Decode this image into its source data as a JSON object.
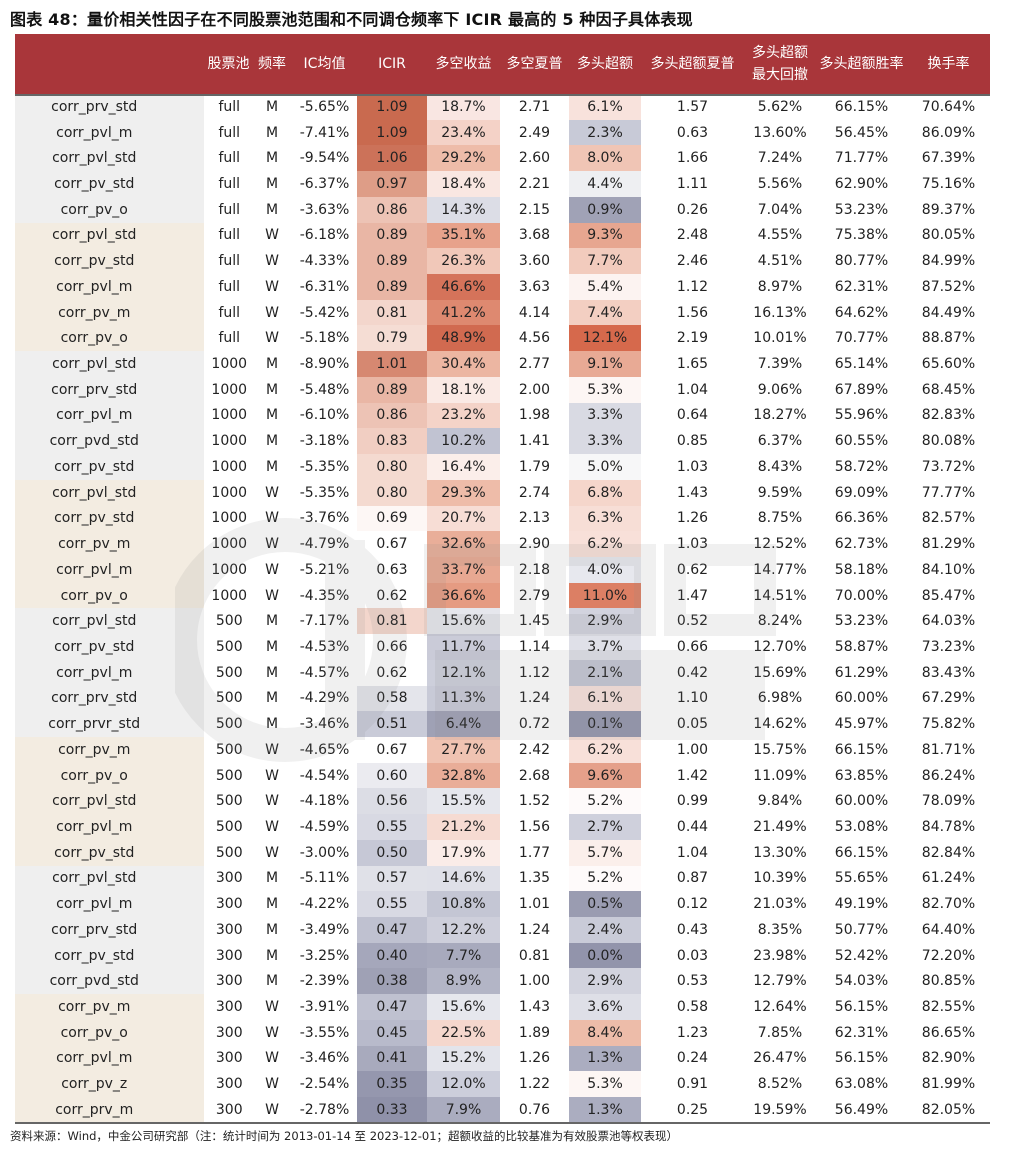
{
  "title": "图表 48：量价相关性因子在不同股票池范围和不同调仓频率下 ICIR 最高的 5 种因子具体表现",
  "headers": [
    "",
    "股票池",
    "频率",
    "IC均值",
    "ICIR",
    "多空收益",
    "多空夏普",
    "多头超额",
    "多头超额夏普",
    "多头超额\n最大回撤",
    "多头超额胜率",
    "换手率"
  ],
  "groupColors": {
    "gray": "#efefef",
    "beige": "#f3ece1"
  },
  "rows": [
    {
      "g": "gray",
      "f": "corr_prv_std",
      "p": "full",
      "q": "M",
      "ic": "-5.65%",
      "icir": "1.09",
      "ls": "18.7%",
      "lss": "2.71",
      "ex": "6.1%",
      "exs": "1.57",
      "dd": "5.62%",
      "wr": "66.15%",
      "to": "70.64%",
      "c_icir": "#c96a4f",
      "c_ls": "#f9e6e2",
      "c_ex": "#f8e2dc"
    },
    {
      "g": "gray",
      "f": "corr_pvl_m",
      "p": "full",
      "q": "M",
      "ic": "-7.41%",
      "icir": "1.09",
      "ls": "23.4%",
      "lss": "2.49",
      "ex": "2.3%",
      "exs": "0.63",
      "dd": "13.60%",
      "wr": "56.45%",
      "to": "86.09%",
      "c_icir": "#c96a4f",
      "c_ls": "#f4d2c7",
      "c_ex": "#c8cad7"
    },
    {
      "g": "gray",
      "f": "corr_pvl_std",
      "p": "full",
      "q": "M",
      "ic": "-9.54%",
      "icir": "1.06",
      "ls": "29.2%",
      "lss": "2.60",
      "ex": "8.0%",
      "exs": "1.66",
      "dd": "7.24%",
      "wr": "71.77%",
      "to": "67.39%",
      "c_icir": "#cc7259",
      "c_ls": "#eebca9",
      "c_ex": "#f0c5b5"
    },
    {
      "g": "gray",
      "f": "corr_pv_std",
      "p": "full",
      "q": "M",
      "ic": "-6.37%",
      "icir": "0.97",
      "ls": "18.4%",
      "lss": "2.21",
      "ex": "4.4%",
      "exs": "1.11",
      "dd": "5.56%",
      "wr": "62.90%",
      "to": "75.16%",
      "c_icir": "#de9d87",
      "c_ls": "#f9e7e2",
      "c_ex": "#eeeff2"
    },
    {
      "g": "gray",
      "f": "corr_pv_o",
      "p": "full",
      "q": "M",
      "ic": "-3.63%",
      "icir": "0.86",
      "ls": "14.3%",
      "lss": "2.15",
      "ex": "0.9%",
      "exs": "0.26",
      "dd": "7.04%",
      "wr": "53.23%",
      "to": "89.37%",
      "c_icir": "#edc3b5",
      "c_ls": "#dcdde6",
      "c_ex": "#a0a2b6"
    },
    {
      "g": "beige",
      "f": "corr_pvl_std",
      "p": "full",
      "q": "W",
      "ic": "-6.18%",
      "icir": "0.89",
      "ls": "35.1%",
      "lss": "3.68",
      "ex": "9.3%",
      "exs": "2.48",
      "dd": "4.55%",
      "wr": "75.38%",
      "to": "80.05%",
      "c_icir": "#e9b6a5",
      "c_ls": "#e7a28b",
      "c_ex": "#e7a690"
    },
    {
      "g": "beige",
      "f": "corr_pv_std",
      "p": "full",
      "q": "W",
      "ic": "-4.33%",
      "icir": "0.89",
      "ls": "26.3%",
      "lss": "3.60",
      "ex": "7.7%",
      "exs": "2.46",
      "dd": "4.51%",
      "wr": "80.77%",
      "to": "84.99%",
      "c_icir": "#e9b6a5",
      "c_ls": "#f1c8b9",
      "c_ex": "#f2cbbd"
    },
    {
      "g": "beige",
      "f": "corr_pvl_m",
      "p": "full",
      "q": "W",
      "ic": "-6.31%",
      "icir": "0.89",
      "ls": "46.6%",
      "lss": "3.63",
      "ex": "5.4%",
      "exs": "1.12",
      "dd": "8.97%",
      "wr": "62.31%",
      "to": "87.52%",
      "c_icir": "#e9b6a5",
      "c_ls": "#d5735a",
      "c_ex": "#fcf3f1"
    },
    {
      "g": "beige",
      "f": "corr_pv_m",
      "p": "full",
      "q": "W",
      "ic": "-5.42%",
      "icir": "0.81",
      "ls": "41.2%",
      "lss": "4.14",
      "ex": "7.4%",
      "exs": "1.56",
      "dd": "16.13%",
      "wr": "64.62%",
      "to": "84.49%",
      "c_icir": "#f3d6cc",
      "c_ls": "#de8970",
      "c_ex": "#f3cfc2"
    },
    {
      "g": "beige",
      "f": "corr_pv_o",
      "p": "full",
      "q": "W",
      "ic": "-5.18%",
      "icir": "0.79",
      "ls": "48.9%",
      "lss": "4.56",
      "ex": "12.1%",
      "exs": "2.19",
      "dd": "10.01%",
      "wr": "70.77%",
      "to": "88.87%",
      "c_icir": "#f5ddd4",
      "c_ls": "#d16a50",
      "c_ex": "#d6694c"
    },
    {
      "g": "gray",
      "f": "corr_pvl_std",
      "p": "1000",
      "q": "M",
      "ic": "-8.90%",
      "icir": "1.01",
      "ls": "30.4%",
      "lss": "2.77",
      "ex": "9.1%",
      "exs": "1.65",
      "dd": "7.39%",
      "wr": "65.14%",
      "to": "65.60%",
      "c_icir": "#d68871",
      "c_ls": "#ecb6a2",
      "c_ex": "#e8aa95"
    },
    {
      "g": "gray",
      "f": "corr_prv_std",
      "p": "1000",
      "q": "M",
      "ic": "-5.48%",
      "icir": "0.89",
      "ls": "18.1%",
      "lss": "2.00",
      "ex": "5.3%",
      "exs": "1.04",
      "dd": "9.06%",
      "wr": "67.89%",
      "to": "68.45%",
      "c_icir": "#e9b6a5",
      "c_ls": "#faeae5",
      "c_ex": "#fdf6f4"
    },
    {
      "g": "gray",
      "f": "corr_pvl_m",
      "p": "1000",
      "q": "M",
      "ic": "-6.10%",
      "icir": "0.86",
      "ls": "23.2%",
      "lss": "1.98",
      "ex": "3.3%",
      "exs": "0.64",
      "dd": "18.27%",
      "wr": "55.96%",
      "to": "82.83%",
      "c_icir": "#edc3b5",
      "c_ls": "#f4d3c8",
      "c_ex": "#d9dae3"
    },
    {
      "g": "gray",
      "f": "corr_pvd_std",
      "p": "1000",
      "q": "M",
      "ic": "-3.18%",
      "icir": "0.83",
      "ls": "10.2%",
      "lss": "1.41",
      "ex": "3.3%",
      "exs": "0.85",
      "dd": "6.37%",
      "wr": "60.55%",
      "to": "80.08%",
      "c_icir": "#f1cec2",
      "c_ls": "#c1c3d2",
      "c_ex": "#d9dae3"
    },
    {
      "g": "gray",
      "f": "corr_pv_std",
      "p": "1000",
      "q": "M",
      "ic": "-5.35%",
      "icir": "0.80",
      "ls": "16.4%",
      "lss": "1.79",
      "ex": "5.0%",
      "exs": "1.03",
      "dd": "8.43%",
      "wr": "58.72%",
      "to": "73.72%",
      "c_icir": "#f4dad0",
      "c_ls": "#fbeeea",
      "c_ex": "#f7f7f8"
    },
    {
      "g": "beige",
      "f": "corr_pvl_std",
      "p": "1000",
      "q": "W",
      "ic": "-5.35%",
      "icir": "0.80",
      "ls": "29.3%",
      "lss": "2.74",
      "ex": "6.8%",
      "exs": "1.43",
      "dd": "9.59%",
      "wr": "69.09%",
      "to": "77.77%",
      "c_icir": "#f4dad0",
      "c_ls": "#eebca9",
      "c_ex": "#f5d6cb"
    },
    {
      "g": "beige",
      "f": "corr_pv_std",
      "p": "1000",
      "q": "W",
      "ic": "-3.76%",
      "icir": "0.69",
      "ls": "20.7%",
      "lss": "2.13",
      "ex": "6.3%",
      "exs": "1.26",
      "dd": "8.75%",
      "wr": "66.36%",
      "to": "82.57%",
      "c_icir": "#fdf7f5",
      "c_ls": "#f7ddd5",
      "c_ex": "#f7ded6"
    },
    {
      "g": "beige",
      "f": "corr_pv_m",
      "p": "1000",
      "q": "W",
      "ic": "-4.79%",
      "icir": "0.67",
      "ls": "32.6%",
      "lss": "2.90",
      "ex": "6.2%",
      "exs": "1.03",
      "dd": "12.52%",
      "wr": "62.73%",
      "to": "81.29%",
      "c_icir": "#ffffff",
      "c_ls": "#e9ae99",
      "c_ex": "#f8e0d9"
    },
    {
      "g": "beige",
      "f": "corr_pvl_m",
      "p": "1000",
      "q": "W",
      "ic": "-5.21%",
      "icir": "0.63",
      "ls": "33.7%",
      "lss": "2.18",
      "ex": "4.0%",
      "exs": "0.62",
      "dd": "14.77%",
      "wr": "58.18%",
      "to": "84.10%",
      "c_icir": "#ffffff",
      "c_ls": "#e8a892",
      "c_ex": "#e7e8ee"
    },
    {
      "g": "beige",
      "f": "corr_pv_o",
      "p": "1000",
      "q": "W",
      "ic": "-4.35%",
      "icir": "0.62",
      "ls": "36.6%",
      "lss": "2.79",
      "ex": "11.0%",
      "exs": "1.47",
      "dd": "14.51%",
      "wr": "70.00%",
      "to": "85.47%",
      "c_icir": "#ffffff",
      "c_ls": "#e59b82",
      "c_ex": "#dc7f64"
    },
    {
      "g": "gray",
      "f": "corr_pvl_std",
      "p": "500",
      "q": "M",
      "ic": "-7.17%",
      "icir": "0.81",
      "ls": "15.6%",
      "lss": "1.45",
      "ex": "2.9%",
      "exs": "0.52",
      "dd": "8.24%",
      "wr": "53.23%",
      "to": "64.03%",
      "c_icir": "#f3d6cc",
      "c_ls": "#e6e7ed",
      "c_ex": "#d2d3de"
    },
    {
      "g": "gray",
      "f": "corr_pv_std",
      "p": "500",
      "q": "M",
      "ic": "-4.53%",
      "icir": "0.66",
      "ls": "11.7%",
      "lss": "1.14",
      "ex": "3.7%",
      "exs": "0.66",
      "dd": "12.70%",
      "wr": "58.87%",
      "to": "73.23%",
      "c_icir": "#ffffff",
      "c_ls": "#cacbd8",
      "c_ex": "#dfe0e8"
    },
    {
      "g": "gray",
      "f": "corr_pvl_m",
      "p": "500",
      "q": "M",
      "ic": "-4.57%",
      "icir": "0.62",
      "ls": "12.1%",
      "lss": "1.12",
      "ex": "2.1%",
      "exs": "0.42",
      "dd": "15.69%",
      "wr": "61.29%",
      "to": "83.43%",
      "c_icir": "#ffffff",
      "c_ls": "#cdcfdb",
      "c_ex": "#c4c6d4"
    },
    {
      "g": "gray",
      "f": "corr_prv_std",
      "p": "500",
      "q": "M",
      "ic": "-4.29%",
      "icir": "0.58",
      "ls": "11.3%",
      "lss": "1.24",
      "ex": "6.1%",
      "exs": "1.10",
      "dd": "6.98%",
      "wr": "60.00%",
      "to": "67.29%",
      "c_icir": "#e4e5eb",
      "c_ls": "#c8cad7",
      "c_ex": "#f8e2dc"
    },
    {
      "g": "gray",
      "f": "corr_prvr_std",
      "p": "500",
      "q": "M",
      "ic": "-3.46%",
      "icir": "0.51",
      "ls": "6.4%",
      "lss": "0.72",
      "ex": "0.1%",
      "exs": "0.05",
      "dd": "14.62%",
      "wr": "45.97%",
      "to": "75.82%",
      "c_icir": "#c9cbd8",
      "c_ls": "#9fa1b5",
      "c_ex": "#9496ad"
    },
    {
      "g": "beige",
      "f": "corr_pv_m",
      "p": "500",
      "q": "W",
      "ic": "-4.65%",
      "icir": "0.67",
      "ls": "27.7%",
      "lss": "2.42",
      "ex": "6.2%",
      "exs": "1.00",
      "dd": "15.75%",
      "wr": "66.15%",
      "to": "81.71%",
      "c_icir": "#ffffff",
      "c_ls": "#f0c3b2",
      "c_ex": "#f8e0d9"
    },
    {
      "g": "beige",
      "f": "corr_pv_o",
      "p": "500",
      "q": "W",
      "ic": "-4.54%",
      "icir": "0.60",
      "ls": "32.8%",
      "lss": "2.68",
      "ex": "9.6%",
      "exs": "1.42",
      "dd": "11.09%",
      "wr": "63.85%",
      "to": "86.24%",
      "c_icir": "#ebebf0",
      "c_ls": "#e9ad98",
      "c_ex": "#e5a08a"
    },
    {
      "g": "beige",
      "f": "corr_pvl_std",
      "p": "500",
      "q": "W",
      "ic": "-4.18%",
      "icir": "0.56",
      "ls": "15.5%",
      "lss": "1.52",
      "ex": "5.2%",
      "exs": "0.99",
      "dd": "9.84%",
      "wr": "60.00%",
      "to": "78.09%",
      "c_icir": "#dcdde5",
      "c_ls": "#e6e7ed",
      "c_ex": "#fefafa"
    },
    {
      "g": "beige",
      "f": "corr_pvl_m",
      "p": "500",
      "q": "W",
      "ic": "-4.59%",
      "icir": "0.55",
      "ls": "21.2%",
      "lss": "1.56",
      "ex": "2.7%",
      "exs": "0.44",
      "dd": "21.49%",
      "wr": "53.08%",
      "to": "84.78%",
      "c_icir": "#d8d9e3",
      "c_ls": "#f6dbd2",
      "c_ex": "#cfd0dc"
    },
    {
      "g": "beige",
      "f": "corr_pv_std",
      "p": "500",
      "q": "W",
      "ic": "-3.00%",
      "icir": "0.50",
      "ls": "17.9%",
      "lss": "1.77",
      "ex": "5.7%",
      "exs": "1.04",
      "dd": "13.30%",
      "wr": "66.15%",
      "to": "82.84%",
      "c_icir": "#c6c8d6",
      "c_ls": "#faece8",
      "c_ex": "#fbefeb"
    },
    {
      "g": "gray",
      "f": "corr_pvl_std",
      "p": "300",
      "q": "M",
      "ic": "-5.11%",
      "icir": "0.57",
      "ls": "14.6%",
      "lss": "1.35",
      "ex": "5.2%",
      "exs": "0.87",
      "dd": "10.39%",
      "wr": "55.65%",
      "to": "61.24%",
      "c_icir": "#e0e1e8",
      "c_ls": "#dfe0e8",
      "c_ex": "#fefafa"
    },
    {
      "g": "gray",
      "f": "corr_pvl_m",
      "p": "300",
      "q": "M",
      "ic": "-4.22%",
      "icir": "0.55",
      "ls": "10.8%",
      "lss": "1.01",
      "ex": "0.5%",
      "exs": "0.12",
      "dd": "21.03%",
      "wr": "49.19%",
      "to": "82.70%",
      "c_icir": "#d8d9e3",
      "c_ls": "#c4c6d4",
      "c_ex": "#9a9cb1"
    },
    {
      "g": "gray",
      "f": "corr_prv_std",
      "p": "300",
      "q": "M",
      "ic": "-3.49%",
      "icir": "0.47",
      "ls": "12.2%",
      "lss": "1.24",
      "ex": "2.4%",
      "exs": "0.43",
      "dd": "8.35%",
      "wr": "50.77%",
      "to": "64.40%",
      "c_icir": "#bfc1d0",
      "c_ls": "#cecfdb",
      "c_ex": "#c9cbd8"
    },
    {
      "g": "gray",
      "f": "corr_pv_std",
      "p": "300",
      "q": "M",
      "ic": "-3.25%",
      "icir": "0.40",
      "ls": "7.7%",
      "lss": "0.81",
      "ex": "0.0%",
      "exs": "0.03",
      "dd": "23.98%",
      "wr": "52.42%",
      "to": "72.20%",
      "c_icir": "#a5a7bb",
      "c_ls": "#a8aabd",
      "c_ex": "#9294ab"
    },
    {
      "g": "gray",
      "f": "corr_pvd_std",
      "p": "300",
      "q": "M",
      "ic": "-2.39%",
      "icir": "0.38",
      "ls": "8.9%",
      "lss": "1.00",
      "ex": "2.9%",
      "exs": "0.53",
      "dd": "12.79%",
      "wr": "54.03%",
      "to": "80.85%",
      "c_icir": "#9fa1b5",
      "c_ls": "#b3b5c6",
      "c_ex": "#d2d3de"
    },
    {
      "g": "beige",
      "f": "corr_pv_m",
      "p": "300",
      "q": "W",
      "ic": "-3.91%",
      "icir": "0.47",
      "ls": "15.6%",
      "lss": "1.43",
      "ex": "3.6%",
      "exs": "0.58",
      "dd": "12.64%",
      "wr": "56.15%",
      "to": "82.55%",
      "c_icir": "#bfc1d0",
      "c_ls": "#e6e7ed",
      "c_ex": "#dedfe7"
    },
    {
      "g": "beige",
      "f": "corr_pv_o",
      "p": "300",
      "q": "W",
      "ic": "-3.55%",
      "icir": "0.45",
      "ls": "22.5%",
      "lss": "1.89",
      "ex": "8.4%",
      "exs": "1.23",
      "dd": "7.85%",
      "wr": "62.31%",
      "to": "86.65%",
      "c_icir": "#b8bacb",
      "c_ls": "#f5d7cd",
      "c_ex": "#edbca9"
    },
    {
      "g": "beige",
      "f": "corr_pvl_m",
      "p": "300",
      "q": "W",
      "ic": "-3.46%",
      "icir": "0.41",
      "ls": "15.2%",
      "lss": "1.26",
      "ex": "1.3%",
      "exs": "0.24",
      "dd": "26.47%",
      "wr": "56.15%",
      "to": "82.90%",
      "c_icir": "#a8aabd",
      "c_ls": "#e3e4eb",
      "c_ex": "#abadc0"
    },
    {
      "g": "beige",
      "f": "corr_pv_z",
      "p": "300",
      "q": "W",
      "ic": "-2.54%",
      "icir": "0.35",
      "ls": "12.0%",
      "lss": "1.22",
      "ex": "5.3%",
      "exs": "0.91",
      "dd": "8.52%",
      "wr": "63.08%",
      "to": "81.99%",
      "c_icir": "#9597ae",
      "c_ls": "#cccedb",
      "c_ex": "#fdf6f4"
    },
    {
      "g": "beige",
      "f": "corr_prv_m",
      "p": "300",
      "q": "W",
      "ic": "-2.78%",
      "icir": "0.33",
      "ls": "7.9%",
      "lss": "0.76",
      "ex": "1.3%",
      "exs": "0.25",
      "dd": "19.59%",
      "wr": "56.49%",
      "to": "82.05%",
      "c_icir": "#8f91a9",
      "c_ls": "#aaacbf",
      "c_ex": "#abadc0"
    }
  ],
  "footer": "资料来源：Wind，中金公司研究部（注：统计时间为 2013-01-14 至 2023-12-01；超额收益的比较基准为有效股票池等权表现）"
}
